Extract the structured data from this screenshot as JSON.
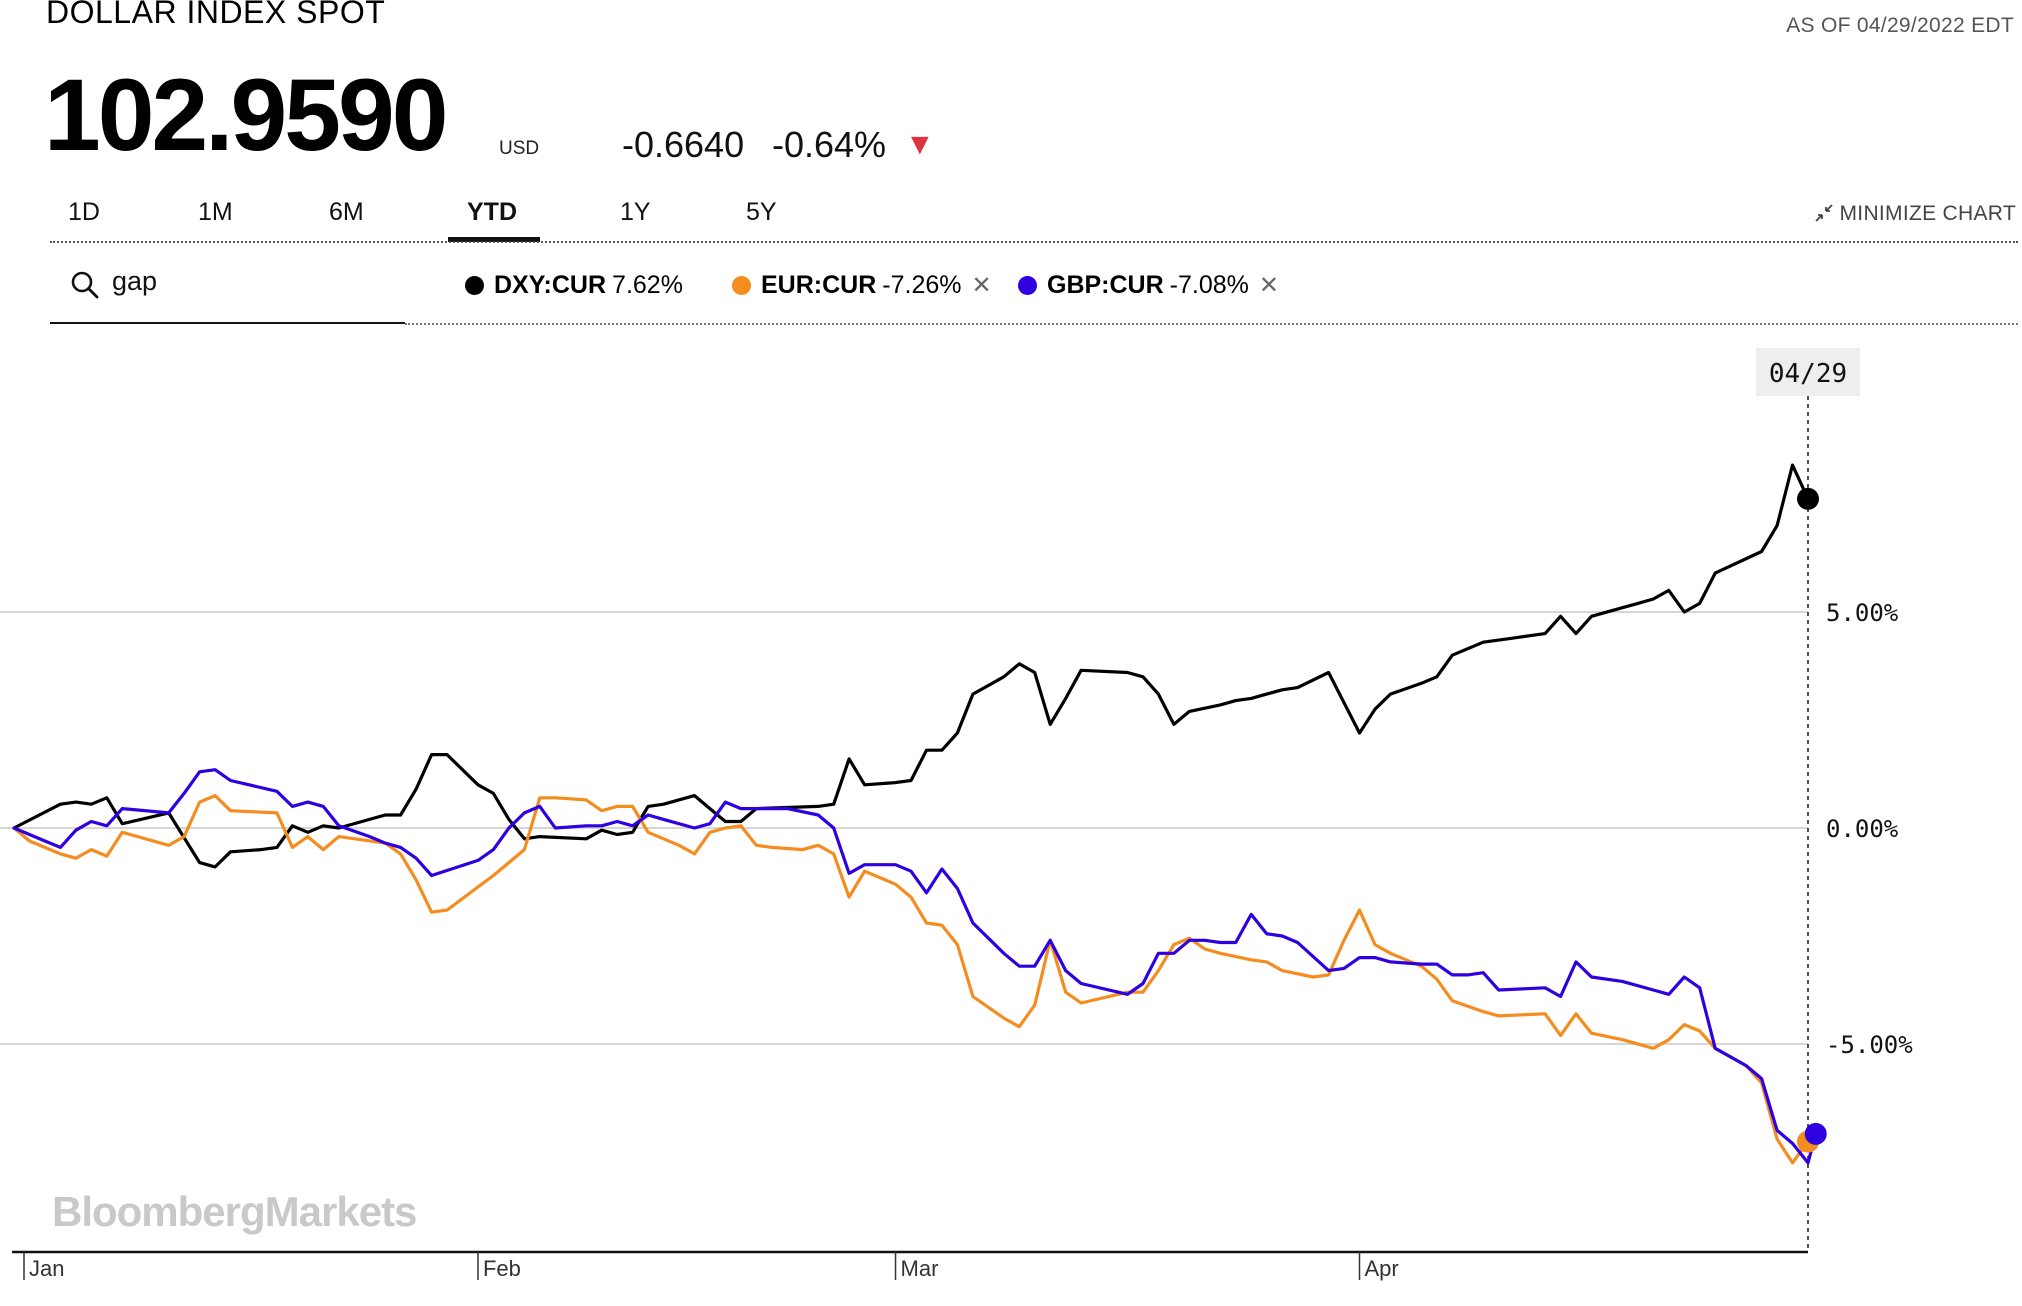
{
  "header": {
    "title": "DOLLAR INDEX SPOT",
    "as_of": "AS OF 04/29/2022 EDT",
    "price": "102.9590",
    "currency": "USD",
    "change": "-0.6640",
    "change_pct": "-0.64%",
    "change_direction_icon": "triangle-down-icon",
    "down_color": "#e0323c"
  },
  "tabs": {
    "items": [
      "1D",
      "1M",
      "6M",
      "YTD",
      "1Y",
      "5Y"
    ],
    "active": "YTD",
    "minimize_label": "MINIMIZE CHART"
  },
  "search": {
    "value": "gap"
  },
  "legend": {
    "items": [
      {
        "symbol": "DXY:CUR",
        "value": "7.62%",
        "color": "#000000",
        "removable": false
      },
      {
        "symbol": "EUR:CUR",
        "value": "-7.26%",
        "color": "#f58c1f",
        "removable": true
      },
      {
        "symbol": "GBP:CUR",
        "value": "-7.08%",
        "color": "#2f00e0",
        "removable": true
      }
    ],
    "remove_icon": "close-icon"
  },
  "watermark": "BloombergMarkets",
  "chart_data": {
    "type": "line",
    "y_unit": "%",
    "ylim": [
      -10,
      10.5
    ],
    "yticks": [
      5,
      0,
      -5
    ],
    "ytick_labels": [
      "5.00%",
      "0.00%",
      "-5.00%"
    ],
    "x_month_labels": [
      {
        "label": "Jan",
        "day": 0
      },
      {
        "label": "Feb",
        "day": 30
      },
      {
        "label": "Mar",
        "day": 57
      },
      {
        "label": "Apr",
        "day": 87
      }
    ],
    "x_max_day": 115,
    "crosshair_label": "04/29",
    "grid": true,
    "series": [
      {
        "name": "DXY:CUR",
        "color": "#000000",
        "points": [
          [
            0,
            0.0
          ],
          [
            3,
            0.55
          ],
          [
            4,
            0.6
          ],
          [
            5,
            0.55
          ],
          [
            6,
            0.7
          ],
          [
            7,
            0.1
          ],
          [
            10,
            0.35
          ],
          [
            12,
            -0.8
          ],
          [
            13,
            -0.9
          ],
          [
            14,
            -0.55
          ],
          [
            16,
            -0.5
          ],
          [
            17,
            -0.45
          ],
          [
            18,
            0.05
          ],
          [
            19,
            -0.1
          ],
          [
            20,
            0.05
          ],
          [
            21,
            0.0
          ],
          [
            24,
            0.3
          ],
          [
            25,
            0.3
          ],
          [
            26,
            0.9
          ],
          [
            27,
            1.7
          ],
          [
            28,
            1.7
          ],
          [
            30,
            1.0
          ],
          [
            31,
            0.8
          ],
          [
            32,
            0.2
          ],
          [
            33,
            -0.25
          ],
          [
            34,
            -0.2
          ],
          [
            37,
            -0.25
          ],
          [
            38,
            -0.05
          ],
          [
            39,
            -0.15
          ],
          [
            40,
            -0.1
          ],
          [
            41,
            0.5
          ],
          [
            42,
            0.55
          ],
          [
            44,
            0.75
          ],
          [
            45,
            0.45
          ],
          [
            46,
            0.15
          ],
          [
            47,
            0.15
          ],
          [
            48,
            0.45
          ],
          [
            52,
            0.5
          ],
          [
            53,
            0.55
          ],
          [
            54,
            1.6
          ],
          [
            55,
            1.0
          ],
          [
            57,
            1.05
          ],
          [
            58,
            1.1
          ],
          [
            59,
            1.8
          ],
          [
            60,
            1.8
          ],
          [
            61,
            2.2
          ],
          [
            62,
            3.1
          ],
          [
            64,
            3.5
          ],
          [
            65,
            3.8
          ],
          [
            66,
            3.6
          ],
          [
            67,
            2.4
          ],
          [
            68,
            3.0
          ],
          [
            69,
            3.65
          ],
          [
            72,
            3.6
          ],
          [
            73,
            3.5
          ],
          [
            74,
            3.1
          ],
          [
            75,
            2.4
          ],
          [
            76,
            2.7
          ],
          [
            78,
            2.85
          ],
          [
            79,
            2.95
          ],
          [
            80,
            3.0
          ],
          [
            81,
            3.1
          ],
          [
            82,
            3.2
          ],
          [
            83,
            3.25
          ],
          [
            85,
            3.6
          ],
          [
            86,
            2.9
          ],
          [
            87,
            2.2
          ],
          [
            88,
            2.75
          ],
          [
            89,
            3.1
          ],
          [
            91,
            3.35
          ],
          [
            92,
            3.5
          ],
          [
            93,
            4.0
          ],
          [
            95,
            4.3
          ],
          [
            97,
            4.4
          ],
          [
            99,
            4.5
          ],
          [
            100,
            4.9
          ],
          [
            101,
            4.5
          ],
          [
            102,
            4.9
          ],
          [
            104,
            5.1
          ],
          [
            105,
            5.2
          ],
          [
            106,
            5.3
          ],
          [
            107,
            5.5
          ],
          [
            108,
            5.0
          ],
          [
            109,
            5.2
          ],
          [
            110,
            5.9
          ],
          [
            113,
            6.4
          ],
          [
            114,
            7.0
          ],
          [
            115,
            8.4
          ],
          [
            116,
            7.62
          ]
        ]
      },
      {
        "name": "EUR:CUR",
        "color": "#f58c1f",
        "points": [
          [
            0,
            0.0
          ],
          [
            1,
            -0.3
          ],
          [
            3,
            -0.6
          ],
          [
            4,
            -0.7
          ],
          [
            5,
            -0.5
          ],
          [
            6,
            -0.65
          ],
          [
            7,
            -0.1
          ],
          [
            10,
            -0.4
          ],
          [
            11,
            -0.2
          ],
          [
            12,
            0.6
          ],
          [
            13,
            0.75
          ],
          [
            14,
            0.4
          ],
          [
            17,
            0.35
          ],
          [
            18,
            -0.45
          ],
          [
            19,
            -0.2
          ],
          [
            20,
            -0.5
          ],
          [
            21,
            -0.2
          ],
          [
            24,
            -0.35
          ],
          [
            25,
            -0.6
          ],
          [
            26,
            -1.2
          ],
          [
            27,
            -1.95
          ],
          [
            28,
            -1.9
          ],
          [
            31,
            -1.1
          ],
          [
            32,
            -0.8
          ],
          [
            33,
            -0.5
          ],
          [
            34,
            0.7
          ],
          [
            35,
            0.7
          ],
          [
            37,
            0.65
          ],
          [
            38,
            0.4
          ],
          [
            39,
            0.5
          ],
          [
            40,
            0.5
          ],
          [
            41,
            -0.1
          ],
          [
            43,
            -0.4
          ],
          [
            44,
            -0.6
          ],
          [
            45,
            -0.1
          ],
          [
            46,
            0.0
          ],
          [
            47,
            0.05
          ],
          [
            48,
            -0.4
          ],
          [
            49,
            -0.45
          ],
          [
            51,
            -0.5
          ],
          [
            52,
            -0.4
          ],
          [
            53,
            -0.6
          ],
          [
            54,
            -1.6
          ],
          [
            55,
            -1.0
          ],
          [
            57,
            -1.3
          ],
          [
            58,
            -1.6
          ],
          [
            59,
            -2.2
          ],
          [
            60,
            -2.25
          ],
          [
            61,
            -2.7
          ],
          [
            62,
            -3.9
          ],
          [
            64,
            -4.4
          ],
          [
            65,
            -4.6
          ],
          [
            66,
            -4.1
          ],
          [
            67,
            -2.6
          ],
          [
            68,
            -3.8
          ],
          [
            69,
            -4.05
          ],
          [
            72,
            -3.8
          ],
          [
            73,
            -3.8
          ],
          [
            74,
            -3.3
          ],
          [
            75,
            -2.7
          ],
          [
            76,
            -2.55
          ],
          [
            77,
            -2.8
          ],
          [
            78,
            -2.9
          ],
          [
            80,
            -3.05
          ],
          [
            81,
            -3.1
          ],
          [
            82,
            -3.3
          ],
          [
            84,
            -3.45
          ],
          [
            85,
            -3.4
          ],
          [
            86,
            -2.6
          ],
          [
            87,
            -1.9
          ],
          [
            88,
            -2.7
          ],
          [
            89,
            -2.9
          ],
          [
            91,
            -3.2
          ],
          [
            92,
            -3.5
          ],
          [
            93,
            -4.0
          ],
          [
            95,
            -4.25
          ],
          [
            96,
            -4.35
          ],
          [
            99,
            -4.3
          ],
          [
            100,
            -4.8
          ],
          [
            101,
            -4.3
          ],
          [
            102,
            -4.75
          ],
          [
            104,
            -4.9
          ],
          [
            106,
            -5.1
          ],
          [
            107,
            -4.9
          ],
          [
            108,
            -4.55
          ],
          [
            109,
            -4.7
          ],
          [
            110,
            -5.1
          ],
          [
            112,
            -5.5
          ],
          [
            113,
            -5.9
          ],
          [
            114,
            -7.2
          ],
          [
            115,
            -7.75
          ],
          [
            116,
            -7.26
          ]
        ]
      },
      {
        "name": "GBP:CUR",
        "color": "#2f00e0",
        "points": [
          [
            0,
            0.0
          ],
          [
            2,
            -0.3
          ],
          [
            3,
            -0.45
          ],
          [
            4,
            -0.05
          ],
          [
            5,
            0.15
          ],
          [
            6,
            0.05
          ],
          [
            7,
            0.45
          ],
          [
            10,
            0.35
          ],
          [
            11,
            0.8
          ],
          [
            12,
            1.3
          ],
          [
            13,
            1.35
          ],
          [
            14,
            1.1
          ],
          [
            17,
            0.85
          ],
          [
            18,
            0.5
          ],
          [
            19,
            0.6
          ],
          [
            20,
            0.5
          ],
          [
            21,
            0.05
          ],
          [
            23,
            -0.2
          ],
          [
            24,
            -0.35
          ],
          [
            25,
            -0.45
          ],
          [
            26,
            -0.7
          ],
          [
            27,
            -1.1
          ],
          [
            30,
            -0.75
          ],
          [
            31,
            -0.5
          ],
          [
            32,
            0.0
          ],
          [
            33,
            0.35
          ],
          [
            34,
            0.5
          ],
          [
            35,
            0.0
          ],
          [
            37,
            0.05
          ],
          [
            38,
            0.05
          ],
          [
            39,
            0.15
          ],
          [
            40,
            0.05
          ],
          [
            41,
            0.3
          ],
          [
            42,
            0.2
          ],
          [
            44,
            0.0
          ],
          [
            45,
            0.1
          ],
          [
            46,
            0.6
          ],
          [
            47,
            0.45
          ],
          [
            49,
            0.45
          ],
          [
            50,
            0.45
          ],
          [
            52,
            0.3
          ],
          [
            53,
            0.0
          ],
          [
            54,
            -1.05
          ],
          [
            55,
            -0.85
          ],
          [
            57,
            -0.85
          ],
          [
            58,
            -1.0
          ],
          [
            59,
            -1.5
          ],
          [
            60,
            -0.95
          ],
          [
            61,
            -1.4
          ],
          [
            62,
            -2.2
          ],
          [
            64,
            -2.9
          ],
          [
            65,
            -3.2
          ],
          [
            66,
            -3.2
          ],
          [
            67,
            -2.6
          ],
          [
            68,
            -3.3
          ],
          [
            69,
            -3.6
          ],
          [
            72,
            -3.85
          ],
          [
            73,
            -3.6
          ],
          [
            74,
            -2.9
          ],
          [
            75,
            -2.9
          ],
          [
            76,
            -2.6
          ],
          [
            77,
            -2.6
          ],
          [
            78,
            -2.65
          ],
          [
            79,
            -2.65
          ],
          [
            80,
            -2.0
          ],
          [
            81,
            -2.45
          ],
          [
            82,
            -2.5
          ],
          [
            83,
            -2.65
          ],
          [
            85,
            -3.3
          ],
          [
            86,
            -3.25
          ],
          [
            87,
            -3.0
          ],
          [
            88,
            -3.0
          ],
          [
            89,
            -3.1
          ],
          [
            91,
            -3.15
          ],
          [
            92,
            -3.15
          ],
          [
            93,
            -3.4
          ],
          [
            94,
            -3.4
          ],
          [
            95,
            -3.35
          ],
          [
            96,
            -3.75
          ],
          [
            99,
            -3.7
          ],
          [
            100,
            -3.9
          ],
          [
            101,
            -3.1
          ],
          [
            102,
            -3.45
          ],
          [
            104,
            -3.55
          ],
          [
            106,
            -3.75
          ],
          [
            107,
            -3.85
          ],
          [
            108,
            -3.45
          ],
          [
            109,
            -3.7
          ],
          [
            110,
            -5.1
          ],
          [
            112,
            -5.5
          ],
          [
            113,
            -5.8
          ],
          [
            114,
            -7.0
          ],
          [
            115,
            -7.3
          ],
          [
            116,
            -7.75
          ],
          [
            116.5,
            -7.08
          ]
        ]
      }
    ]
  }
}
